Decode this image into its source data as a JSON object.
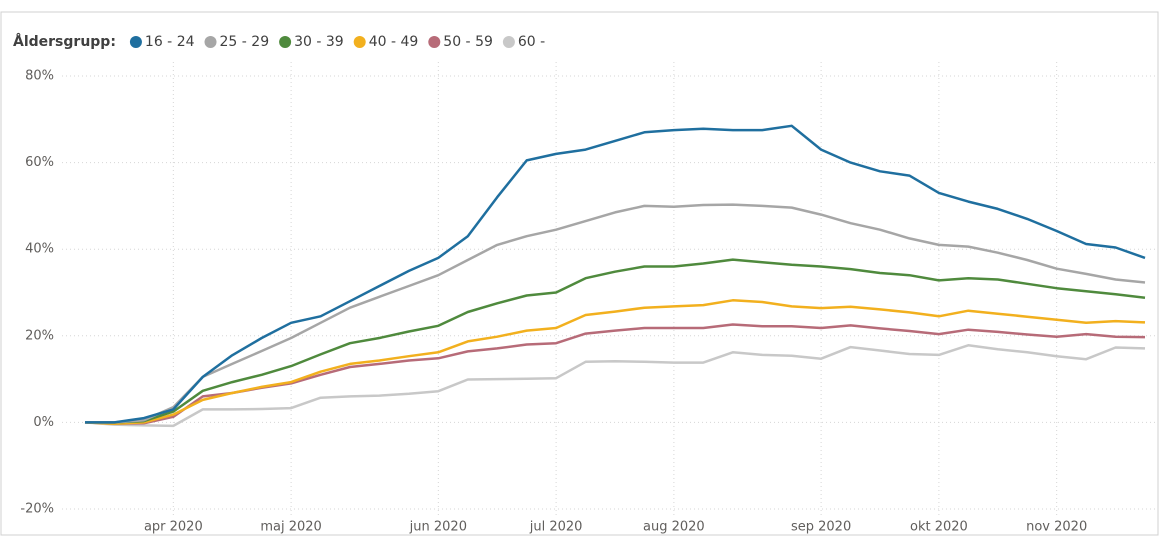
{
  "chart_data": {
    "type": "line",
    "legend_title": "Åldersgrupp:",
    "categories": [
      null,
      null,
      null,
      "apr 2020",
      null,
      null,
      null,
      "maj 2020",
      null,
      null,
      null,
      null,
      "jun 2020",
      null,
      null,
      null,
      "jul 2020",
      null,
      null,
      null,
      "aug 2020",
      null,
      null,
      null,
      null,
      "sep 2020",
      null,
      null,
      null,
      "okt 2020",
      null,
      null,
      null,
      "nov 2020",
      null,
      null,
      null
    ],
    "series": [
      {
        "name": "16 - 24",
        "color": "#1f6f9f",
        "values": [
          0,
          0,
          1,
          3,
          10.5,
          15.5,
          19.5,
          23,
          24.5,
          28,
          31.5,
          35,
          38,
          43,
          52,
          60.5,
          62,
          63,
          65,
          67,
          67.5,
          67.8,
          67.5,
          67.5,
          68.5,
          63,
          60,
          58,
          57,
          53,
          51,
          49.3,
          47,
          44.2,
          41.2,
          40.4,
          38
        ]
      },
      {
        "name": "25 - 29",
        "color": "#a6a6a6",
        "values": [
          0,
          0,
          0.5,
          3.5,
          10.5,
          13.5,
          16.5,
          19.5,
          23,
          26.5,
          29,
          31.5,
          34,
          37.5,
          41,
          43,
          44.5,
          46.5,
          48.5,
          50,
          49.8,
          50.2,
          50.3,
          50,
          49.6,
          48,
          46,
          44.5,
          42.5,
          41,
          40.6,
          39.2,
          37.5,
          35.5,
          34.3,
          33,
          32.3
        ]
      },
      {
        "name": "30 - 39",
        "color": "#4f8a3d",
        "values": [
          0,
          0,
          0.3,
          2.5,
          7.3,
          9.3,
          11,
          13,
          15.7,
          18.3,
          19.5,
          21,
          22.3,
          25.5,
          27.5,
          29.3,
          30,
          33.3,
          34.8,
          36,
          36,
          36.7,
          37.6,
          37,
          36.4,
          36,
          35.4,
          34.5,
          34,
          32.8,
          33.3,
          33,
          32,
          31,
          30.3,
          29.6,
          28.8
        ]
      },
      {
        "name": "40 - 49",
        "color": "#f2b01e",
        "values": [
          0,
          -0.3,
          0,
          1.8,
          5.2,
          6.8,
          8.2,
          9.3,
          11.7,
          13.5,
          14.3,
          15.3,
          16.2,
          18.7,
          19.8,
          21.2,
          21.8,
          24.8,
          25.6,
          26.5,
          26.8,
          27.1,
          28.2,
          27.8,
          26.8,
          26.4,
          26.7,
          26.1,
          25.4,
          24.5,
          25.8,
          25.1,
          24.4,
          23.7,
          23,
          23.4,
          23.1
        ]
      },
      {
        "name": "50 - 59",
        "color": "#b76b78",
        "values": [
          0,
          -0.3,
          -0.2,
          1.3,
          6,
          6.8,
          8,
          9,
          11,
          12.8,
          13.5,
          14.3,
          14.8,
          16.4,
          17.1,
          18,
          18.3,
          20.5,
          21.2,
          21.8,
          21.8,
          21.8,
          22.6,
          22.2,
          22.2,
          21.8,
          22.4,
          21.7,
          21.1,
          20.4,
          21.4,
          20.9,
          20.3,
          19.8,
          20.4,
          19.8,
          19.7
        ]
      },
      {
        "name": "60 -",
        "color": "#c8c8c8",
        "values": [
          0,
          -0.5,
          -0.7,
          -0.8,
          3,
          3,
          3.1,
          3.3,
          5.7,
          6,
          6.2,
          6.6,
          7.2,
          9.9,
          10,
          10.1,
          10.2,
          14,
          14.1,
          14,
          13.8,
          13.8,
          16.2,
          15.6,
          15.4,
          14.7,
          17.4,
          16.6,
          15.8,
          15.6,
          17.8,
          16.9,
          16.2,
          15.3,
          14.6,
          17.3,
          17.1
        ]
      }
    ],
    "ylim": [
      -20,
      80
    ],
    "yticks": [
      {
        "value": -20,
        "label": "-20%"
      },
      {
        "value": 0,
        "label": "0%"
      },
      {
        "value": 20,
        "label": "20%"
      },
      {
        "value": 40,
        "label": "40%"
      },
      {
        "value": 60,
        "label": "60%"
      },
      {
        "value": 80,
        "label": "80%"
      }
    ],
    "grid": true
  }
}
